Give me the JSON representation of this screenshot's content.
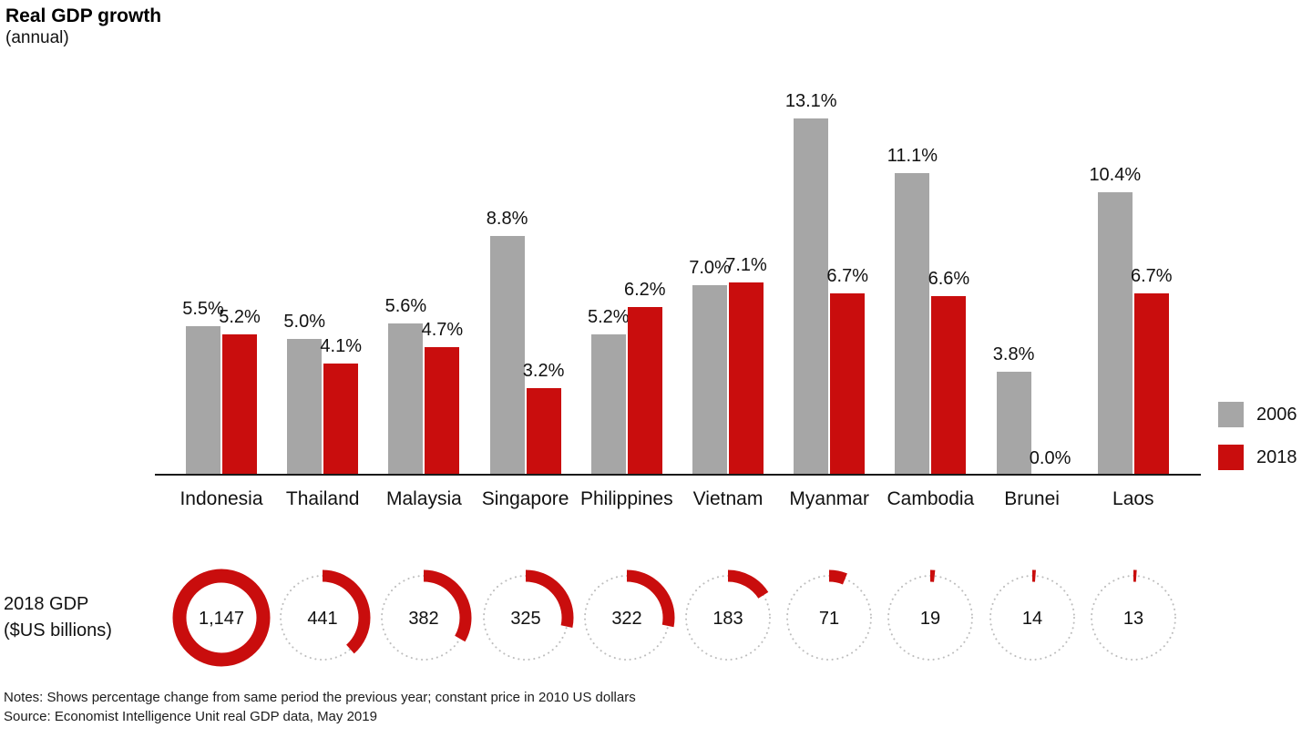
{
  "title": "Real GDP growth",
  "subtitle": "(annual)",
  "legend": [
    {
      "label": "2006",
      "color": "#a6a6a6"
    },
    {
      "label": "2018",
      "color": "#c90d0d"
    }
  ],
  "gdp_row_label": {
    "line1": "2018 GDP",
    "line2": "($US billions)"
  },
  "notes": "Notes: Shows percentage change from same period the previous year; constant price in 2010 US dollars",
  "source": "Source: Economist Intelligence Unit real GDP data, May 2019",
  "chart_data": {
    "type": "bar",
    "title": "Real GDP growth (annual)",
    "categories": [
      "Indonesia",
      "Thailand",
      "Malaysia",
      "Singapore",
      "Philippines",
      "Vietnam",
      "Myanmar",
      "Cambodia",
      "Brunei",
      "Laos"
    ],
    "series": [
      {
        "name": "2006",
        "color": "#a6a6a6",
        "values": [
          5.5,
          5.0,
          5.6,
          8.8,
          5.2,
          7.0,
          13.1,
          11.1,
          3.8,
          10.4
        ]
      },
      {
        "name": "2018",
        "color": "#c90d0d",
        "values": [
          5.2,
          4.1,
          4.7,
          3.2,
          6.2,
          7.1,
          6.7,
          6.6,
          0.0,
          6.7
        ]
      }
    ],
    "value_suffix": "%",
    "ylim": [
      0,
      14
    ],
    "grid": false,
    "legend_position": "right",
    "gdp_2018_billions": [
      1147,
      441,
      382,
      325,
      322,
      183,
      71,
      19,
      14,
      13
    ],
    "gdp_display": [
      "1,147",
      "441",
      "382",
      "325",
      "322",
      "183",
      "71",
      "19",
      "14",
      "13"
    ]
  }
}
